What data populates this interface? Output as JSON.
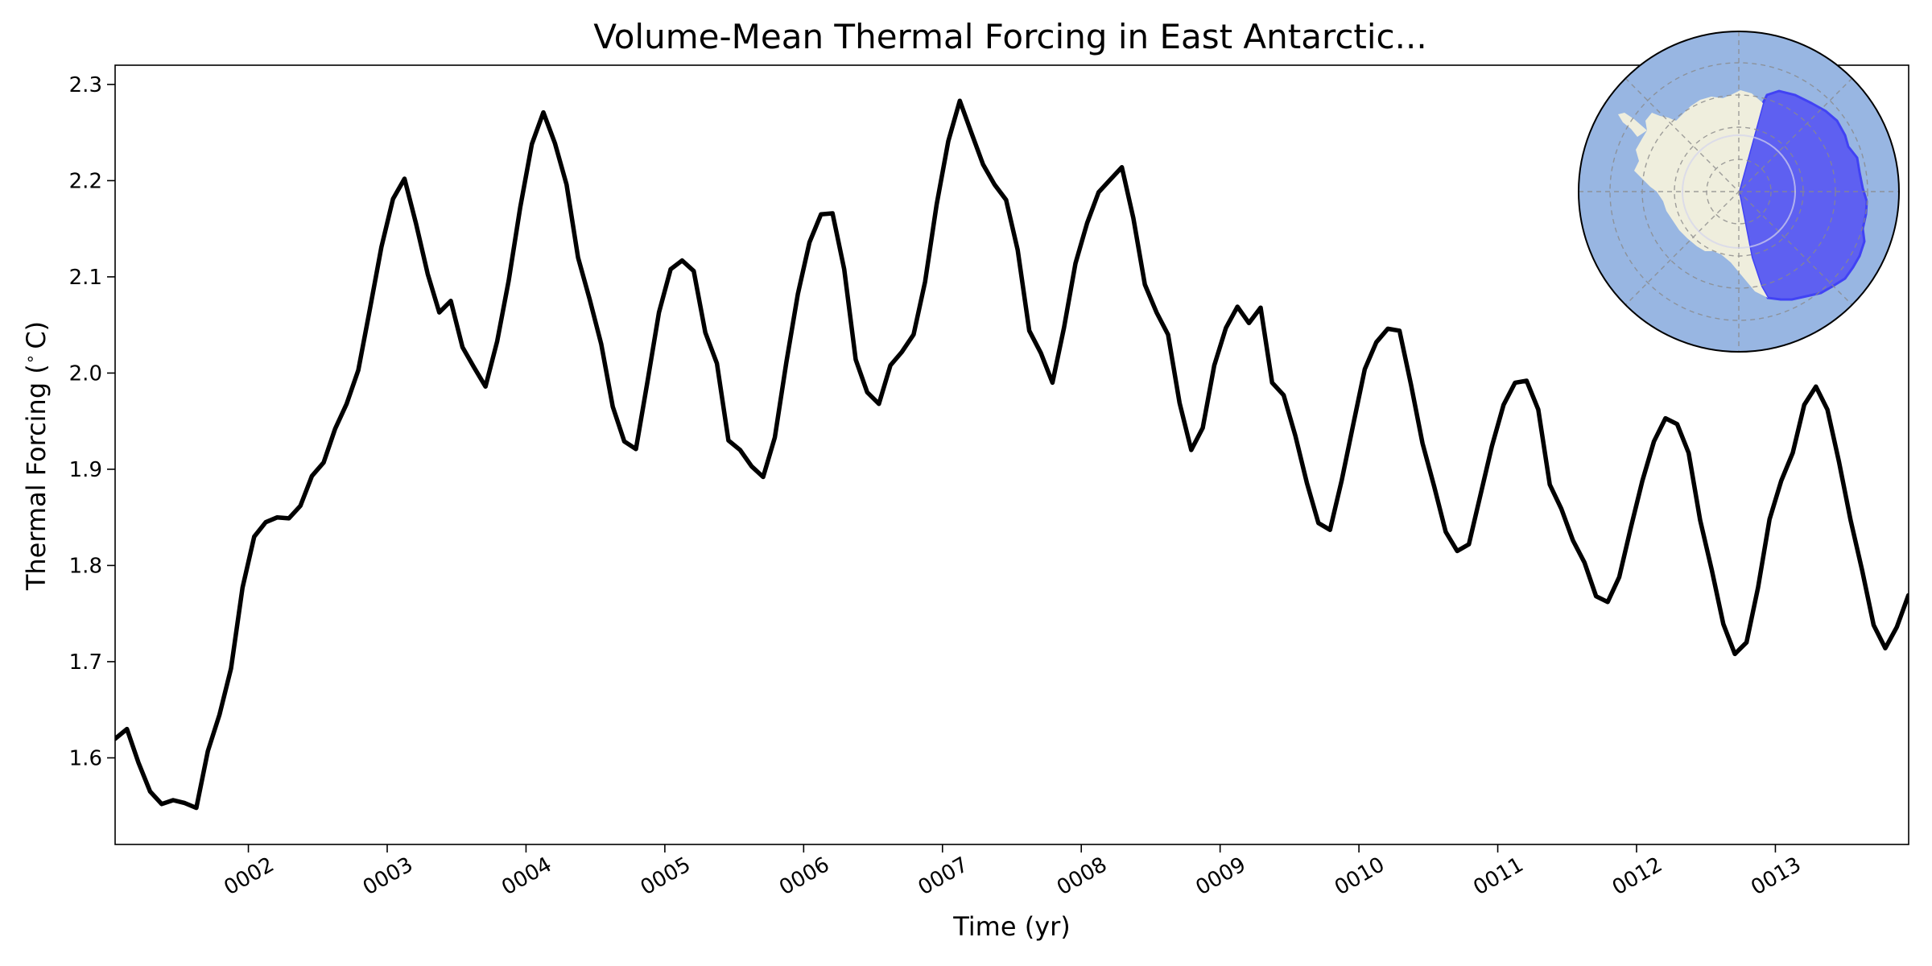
{
  "chart_data": {
    "type": "line",
    "title": "Volume-Mean Thermal Forcing in East Antarctic...",
    "xlabel": "Time (yr)",
    "ylabel": "Thermal Forcing (",
    "ylabel_unit_degree": "∘",
    "ylabel_unit_letter": "C)",
    "xlim": [
      1.04,
      13.96
    ],
    "ylim": [
      1.51,
      2.32
    ],
    "grid": false,
    "legend": "none",
    "xticks": [
      {
        "value": 2,
        "label": "0002"
      },
      {
        "value": 3,
        "label": "0003"
      },
      {
        "value": 4,
        "label": "0004"
      },
      {
        "value": 5,
        "label": "0005"
      },
      {
        "value": 6,
        "label": "0006"
      },
      {
        "value": 7,
        "label": "0007"
      },
      {
        "value": 8,
        "label": "0008"
      },
      {
        "value": 9,
        "label": "0009"
      },
      {
        "value": 10,
        "label": "0010"
      },
      {
        "value": 11,
        "label": "0011"
      },
      {
        "value": 12,
        "label": "0012"
      },
      {
        "value": 13,
        "label": "0013"
      }
    ],
    "yticks": [
      {
        "value": 1.6,
        "label": "1.6"
      },
      {
        "value": 1.7,
        "label": "1.7"
      },
      {
        "value": 1.8,
        "label": "1.8"
      },
      {
        "value": 1.9,
        "label": "1.9"
      },
      {
        "value": 2.0,
        "label": "2.0"
      },
      {
        "value": 2.1,
        "label": "2.1"
      },
      {
        "value": 2.2,
        "label": "2.2"
      },
      {
        "value": 2.3,
        "label": "2.3"
      }
    ],
    "series": [
      {
        "color": "#000000",
        "x": [
          1.042,
          1.125,
          1.208,
          1.292,
          1.375,
          1.458,
          1.542,
          1.625,
          1.708,
          1.792,
          1.875,
          1.958,
          2.042,
          2.125,
          2.208,
          2.292,
          2.375,
          2.458,
          2.542,
          2.625,
          2.708,
          2.792,
          2.875,
          2.958,
          3.042,
          3.125,
          3.208,
          3.292,
          3.375,
          3.458,
          3.542,
          3.625,
          3.708,
          3.792,
          3.875,
          3.958,
          4.042,
          4.125,
          4.208,
          4.292,
          4.375,
          4.458,
          4.542,
          4.625,
          4.708,
          4.792,
          4.875,
          4.958,
          5.042,
          5.125,
          5.208,
          5.292,
          5.375,
          5.458,
          5.542,
          5.625,
          5.708,
          5.792,
          5.875,
          5.958,
          6.042,
          6.125,
          6.208,
          6.292,
          6.375,
          6.458,
          6.542,
          6.625,
          6.708,
          6.792,
          6.875,
          6.958,
          7.042,
          7.125,
          7.208,
          7.292,
          7.375,
          7.458,
          7.542,
          7.625,
          7.708,
          7.792,
          7.875,
          7.958,
          8.042,
          8.125,
          8.208,
          8.292,
          8.375,
          8.458,
          8.542,
          8.625,
          8.708,
          8.792,
          8.875,
          8.958,
          9.042,
          9.125,
          9.208,
          9.292,
          9.375,
          9.458,
          9.542,
          9.625,
          9.708,
          9.792,
          9.875,
          9.958,
          10.042,
          10.125,
          10.208,
          10.292,
          10.375,
          10.458,
          10.542,
          10.625,
          10.708,
          10.792,
          10.875,
          10.958,
          11.042,
          11.125,
          11.208,
          11.292,
          11.375,
          11.458,
          11.542,
          11.625,
          11.708,
          11.792,
          11.875,
          11.958,
          12.042,
          12.125,
          12.208,
          12.292,
          12.375,
          12.458,
          12.542,
          12.625,
          12.708,
          12.792,
          12.875,
          12.958,
          13.042,
          13.125,
          13.208,
          13.292,
          13.375,
          13.458,
          13.542,
          13.625,
          13.708,
          13.792,
          13.875,
          13.958
        ],
        "y": [
          1.62,
          1.63,
          1.595,
          1.565,
          1.552,
          1.556,
          1.553,
          1.548,
          1.607,
          1.645,
          1.693,
          1.777,
          1.83,
          1.845,
          1.85,
          1.849,
          1.862,
          1.893,
          1.907,
          1.942,
          1.968,
          2.003,
          2.066,
          2.131,
          2.181,
          2.202,
          2.155,
          2.103,
          2.063,
          2.075,
          2.027,
          2.006,
          1.986,
          2.033,
          2.096,
          2.172,
          2.238,
          2.271,
          2.239,
          2.196,
          2.12,
          2.077,
          2.03,
          1.965,
          1.929,
          1.921,
          1.991,
          2.063,
          2.108,
          2.117,
          2.106,
          2.042,
          2.01,
          1.93,
          1.92,
          1.903,
          1.892,
          1.933,
          2.011,
          2.082,
          2.136,
          2.165,
          2.166,
          2.108,
          2.014,
          1.98,
          1.968,
          2.008,
          2.022,
          2.04,
          2.095,
          2.175,
          2.241,
          2.283,
          2.25,
          2.217,
          2.196,
          2.18,
          2.128,
          2.044,
          2.021,
          1.99,
          2.047,
          2.114,
          2.156,
          2.188,
          2.201,
          2.214,
          2.161,
          2.092,
          2.063,
          2.04,
          1.969,
          1.92,
          1.943,
          2.008,
          2.047,
          2.069,
          2.052,
          2.068,
          1.99,
          1.977,
          1.935,
          1.886,
          1.844,
          1.837,
          1.888,
          1.946,
          2.004,
          2.032,
          2.046,
          2.044,
          1.988,
          1.927,
          1.882,
          1.835,
          1.815,
          1.822,
          1.873,
          1.924,
          1.967,
          1.99,
          1.992,
          1.962,
          1.884,
          1.859,
          1.826,
          1.803,
          1.768,
          1.762,
          1.788,
          1.839,
          1.888,
          1.929,
          1.953,
          1.947,
          1.917,
          1.847,
          1.795,
          1.739,
          1.708,
          1.72,
          1.777,
          1.848,
          1.888,
          1.917,
          1.967,
          1.986,
          1.962,
          1.908,
          1.847,
          1.795,
          1.738,
          1.714,
          1.736,
          1.769
        ]
      }
    ],
    "inset_map": {
      "type": "south-polar-map",
      "ocean_color": "#98b6e2",
      "land_color": "#efeedd",
      "highlight_color": "#5b5cf2",
      "highlight_edge_color": "#3d3df5"
    }
  }
}
